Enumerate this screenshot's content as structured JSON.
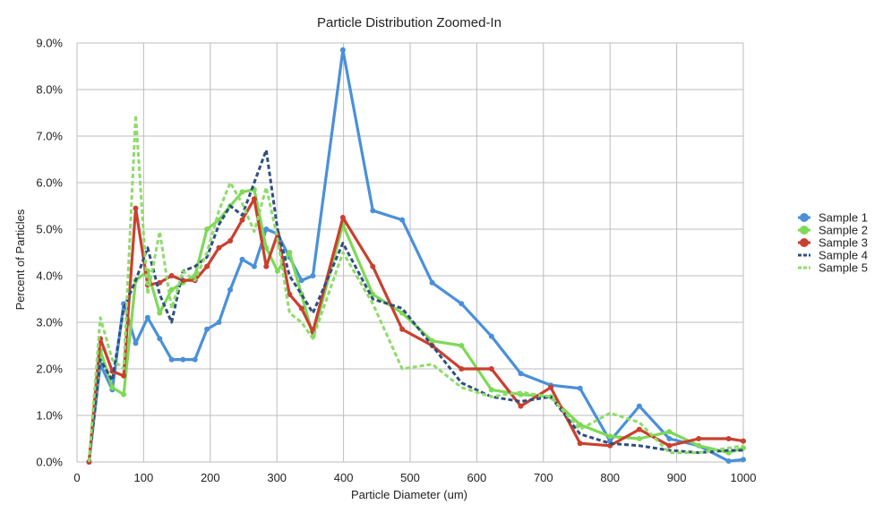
{
  "chart_data": {
    "type": "line",
    "title": "Particle Distribution Zoomed-In",
    "xlabel": "Particle Diameter (um)",
    "ylabel": "Percent of Particles",
    "xlim": [
      0,
      1000
    ],
    "ylim": [
      0,
      9
    ],
    "x_ticks": [
      "0",
      "100",
      "200",
      "300",
      "400",
      "500",
      "600",
      "700",
      "800",
      "900",
      "1000"
    ],
    "y_ticks": [
      "0.0%",
      "1.0%",
      "2.0%",
      "3.0%",
      "4.0%",
      "5.0%",
      "6.0%",
      "7.0%",
      "8.0%",
      "9.0%"
    ],
    "grid": true,
    "legend_position": "right",
    "series": [
      {
        "name": "Sample 1",
        "color": "#4a90d9",
        "style": "solid",
        "markers": true,
        "x": [
          18,
          35,
          53,
          70,
          88,
          106,
          124,
          142,
          159,
          177,
          195,
          213,
          230,
          248,
          266,
          284,
          301,
          319,
          337,
          354,
          399,
          444,
          488,
          533,
          577,
          622,
          666,
          711,
          755,
          800,
          844,
          889,
          933,
          978,
          1000
        ],
        "y": [
          0,
          2.1,
          1.55,
          3.4,
          2.55,
          3.1,
          2.65,
          2.2,
          2.2,
          2.2,
          2.85,
          3.0,
          3.7,
          4.35,
          4.2,
          5.0,
          4.9,
          4.4,
          3.9,
          4.0,
          8.85,
          5.4,
          5.2,
          3.85,
          3.4,
          2.7,
          1.9,
          1.65,
          1.58,
          0.45,
          1.2,
          0.5,
          0.35,
          0.02,
          0.05
        ]
      },
      {
        "name": "Sample 2",
        "color": "#7ed957",
        "style": "solid",
        "markers": true,
        "x": [
          18,
          35,
          53,
          70,
          88,
          106,
          124,
          142,
          159,
          177,
          195,
          213,
          230,
          248,
          266,
          284,
          301,
          319,
          337,
          354,
          399,
          444,
          488,
          533,
          577,
          622,
          666,
          711,
          755,
          800,
          844,
          889,
          933,
          978,
          1000
        ],
        "y": [
          0,
          2.4,
          1.6,
          1.45,
          3.9,
          4.1,
          3.2,
          3.7,
          3.85,
          4.0,
          5.0,
          5.2,
          5.5,
          5.8,
          5.85,
          4.6,
          4.1,
          4.5,
          3.6,
          2.7,
          5.1,
          3.6,
          3.2,
          2.6,
          2.5,
          1.55,
          1.45,
          1.4,
          0.8,
          0.55,
          0.5,
          0.65,
          0.35,
          0.2,
          0.3
        ]
      },
      {
        "name": "Sample 3",
        "color": "#c9402f",
        "style": "solid",
        "markers": true,
        "x": [
          18,
          35,
          53,
          70,
          88,
          106,
          124,
          142,
          159,
          177,
          195,
          213,
          230,
          248,
          266,
          284,
          301,
          319,
          337,
          354,
          399,
          444,
          488,
          533,
          577,
          622,
          666,
          711,
          755,
          800,
          844,
          889,
          933,
          978,
          1000
        ],
        "y": [
          0,
          2.65,
          1.95,
          1.85,
          5.45,
          3.8,
          3.85,
          4.0,
          3.9,
          3.9,
          4.2,
          4.6,
          4.75,
          5.2,
          5.65,
          4.2,
          4.9,
          3.6,
          3.3,
          2.8,
          5.25,
          4.2,
          2.85,
          2.5,
          2.0,
          2.0,
          1.2,
          1.6,
          0.4,
          0.35,
          0.7,
          0.35,
          0.5,
          0.5,
          0.45
        ]
      },
      {
        "name": "Sample 4",
        "color": "#2f4f80",
        "style": "dashed",
        "markers": false,
        "x": [
          18,
          35,
          53,
          70,
          88,
          106,
          124,
          142,
          159,
          177,
          195,
          213,
          230,
          248,
          266,
          284,
          301,
          319,
          337,
          354,
          399,
          444,
          488,
          533,
          577,
          622,
          666,
          711,
          755,
          800,
          844,
          889,
          933,
          978,
          1000
        ],
        "y": [
          0,
          2.2,
          1.75,
          3.3,
          3.9,
          4.6,
          3.6,
          3.0,
          4.1,
          4.2,
          4.4,
          5.1,
          5.5,
          5.3,
          6.0,
          6.7,
          5.0,
          4.0,
          3.6,
          3.2,
          4.7,
          3.5,
          3.3,
          2.5,
          1.7,
          1.4,
          1.3,
          1.4,
          0.6,
          0.4,
          0.35,
          0.25,
          0.2,
          0.25,
          0.25
        ]
      },
      {
        "name": "Sample 5",
        "color": "#8edb6a",
        "style": "dashed",
        "markers": false,
        "x": [
          18,
          35,
          53,
          70,
          88,
          106,
          124,
          142,
          159,
          177,
          195,
          213,
          230,
          248,
          266,
          284,
          301,
          319,
          337,
          354,
          399,
          444,
          488,
          533,
          577,
          622,
          666,
          711,
          755,
          800,
          844,
          889,
          933,
          978,
          1000
        ],
        "y": [
          0,
          3.1,
          2.2,
          2.0,
          7.45,
          3.6,
          4.95,
          3.3,
          4.1,
          3.9,
          4.5,
          5.4,
          6.0,
          5.55,
          4.95,
          5.9,
          4.8,
          3.2,
          3.0,
          2.65,
          4.5,
          3.4,
          2.0,
          2.1,
          1.6,
          1.4,
          1.5,
          1.4,
          0.7,
          1.05,
          0.85,
          0.2,
          0.2,
          0.3,
          0.35
        ]
      }
    ]
  }
}
